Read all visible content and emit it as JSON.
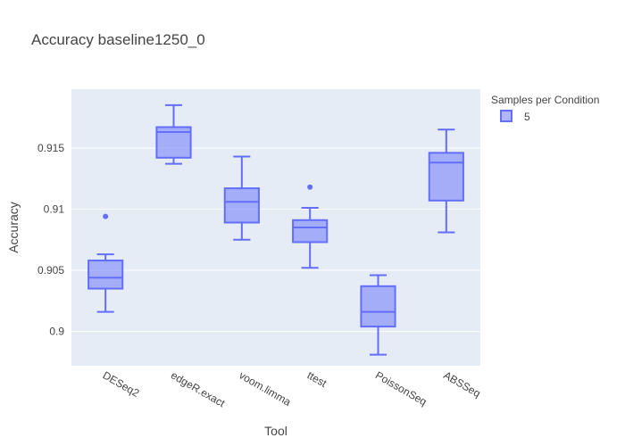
{
  "chart_data": {
    "type": "box",
    "title": "Accuracy baseline1250_0",
    "xlabel": "Tool",
    "ylabel": "Accuracy",
    "categories": [
      "DESeq2",
      "edgeR.exact",
      "voom.limma",
      "ttest",
      "PoissonSeq",
      "ABSSeq"
    ],
    "ylim": [
      0.8972,
      0.9198
    ],
    "yticks": [
      0.9,
      0.905,
      0.91,
      0.915
    ],
    "ytick_labels": [
      "0.9",
      "0.905",
      "0.91",
      "0.915"
    ],
    "grid": true,
    "legend": {
      "title": "Samples per Condition",
      "placement": "top-right"
    },
    "series": [
      {
        "name": "5",
        "color": "#636efa",
        "boxes": [
          {
            "category": "DESeq2",
            "lower_whisker": 0.9016,
            "q1": 0.9035,
            "median": 0.9044,
            "q3": 0.9058,
            "upper_whisker": 0.9063,
            "outliers": [
              0.9094
            ]
          },
          {
            "category": "edgeR.exact",
            "lower_whisker": 0.9137,
            "q1": 0.9142,
            "median": 0.9163,
            "q3": 0.9167,
            "upper_whisker": 0.9185,
            "outliers": []
          },
          {
            "category": "voom.limma",
            "lower_whisker": 0.9075,
            "q1": 0.9089,
            "median": 0.9106,
            "q3": 0.9117,
            "upper_whisker": 0.9143,
            "outliers": []
          },
          {
            "category": "ttest",
            "lower_whisker": 0.9052,
            "q1": 0.9073,
            "median": 0.9085,
            "q3": 0.9091,
            "upper_whisker": 0.9101,
            "outliers": [
              0.9118
            ]
          },
          {
            "category": "PoissonSeq",
            "lower_whisker": 0.8981,
            "q1": 0.9004,
            "median": 0.9016,
            "q3": 0.9037,
            "upper_whisker": 0.9046,
            "outliers": []
          },
          {
            "category": "ABSSeq",
            "lower_whisker": 0.9081,
            "q1": 0.9107,
            "median": 0.9138,
            "q3": 0.9146,
            "upper_whisker": 0.9165,
            "outliers": []
          }
        ]
      }
    ]
  }
}
